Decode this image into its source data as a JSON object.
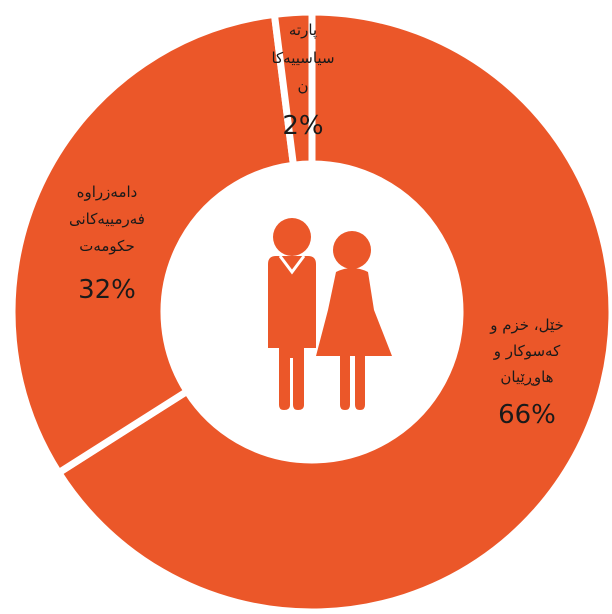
{
  "chart_data": {
    "type": "pie",
    "style": "donut",
    "color": "#EB5729",
    "separator_color": "#ffffff",
    "center_icon": "couple-icon",
    "slices": [
      {
        "label_lines": [
          "خێل، خزم و",
          "کەسوکار و",
          "هاوڕێیان"
        ],
        "percent_label": "66%",
        "value": 66
      },
      {
        "label_lines": [
          "دامەزراوە",
          "فەرمییەکانی",
          "حکومەت"
        ],
        "percent_label": "32%",
        "value": 32
      },
      {
        "label_lines": [
          "پارتە",
          "سیاسییەکا",
          "ن"
        ],
        "percent_label": "2%",
        "value": 2
      }
    ]
  }
}
